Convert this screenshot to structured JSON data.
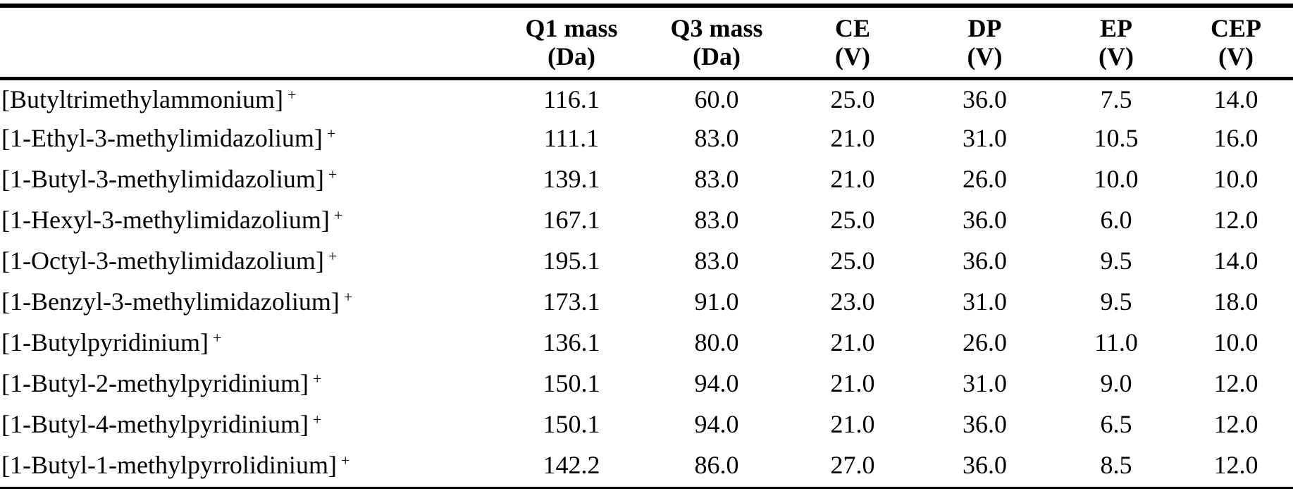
{
  "table": {
    "headers": [
      {
        "line1": "",
        "line2": ""
      },
      {
        "line1": "Q1 mass",
        "line2": "(Da)"
      },
      {
        "line1": "Q3 mass",
        "line2": "(Da)"
      },
      {
        "line1": "CE",
        "line2": "(V)"
      },
      {
        "line1": "DP",
        "line2": "(V)"
      },
      {
        "line1": "EP",
        "line2": "(V)"
      },
      {
        "line1": "CEP",
        "line2": "(V)"
      }
    ],
    "charge_symbol": "+",
    "rows": [
      {
        "name": "[Butyltrimethylammonium]",
        "q1": "116.1",
        "q3": "60.0",
        "ce": "25.0",
        "dp": "36.0",
        "ep": "7.5",
        "cep": "14.0"
      },
      {
        "name": "[1-Ethyl-3-methylimidazolium]",
        "q1": "111.1",
        "q3": "83.0",
        "ce": "21.0",
        "dp": "31.0",
        "ep": "10.5",
        "cep": "16.0"
      },
      {
        "name": "[1-Butyl-3-methylimidazolium]",
        "q1": "139.1",
        "q3": "83.0",
        "ce": "21.0",
        "dp": "26.0",
        "ep": "10.0",
        "cep": "10.0"
      },
      {
        "name": "[1-Hexyl-3-methylimidazolium]",
        "q1": "167.1",
        "q3": "83.0",
        "ce": "25.0",
        "dp": "36.0",
        "ep": "6.0",
        "cep": "12.0"
      },
      {
        "name": "[1-Octyl-3-methylimidazolium]",
        "q1": "195.1",
        "q3": "83.0",
        "ce": "25.0",
        "dp": "36.0",
        "ep": "9.5",
        "cep": "14.0"
      },
      {
        "name": "[1-Benzyl-3-methylimidazolium]",
        "q1": "173.1",
        "q3": "91.0",
        "ce": "23.0",
        "dp": "31.0",
        "ep": "9.5",
        "cep": "18.0"
      },
      {
        "name": "[1-Butylpyridinium]",
        "q1": "136.1",
        "q3": "80.0",
        "ce": "21.0",
        "dp": "26.0",
        "ep": "11.0",
        "cep": "10.0"
      },
      {
        "name": "[1-Butyl-2-methylpyridinium]",
        "q1": "150.1",
        "q3": "94.0",
        "ce": "21.0",
        "dp": "31.0",
        "ep": "9.0",
        "cep": "12.0"
      },
      {
        "name": "[1-Butyl-4-methylpyridinium]",
        "q1": "150.1",
        "q3": "94.0",
        "ce": "21.0",
        "dp": "36.0",
        "ep": "6.5",
        "cep": "12.0"
      },
      {
        "name": "[1-Butyl-1-methylpyrrolidinium]",
        "q1": "142.2",
        "q3": "86.0",
        "ce": "27.0",
        "dp": "36.0",
        "ep": "8.5",
        "cep": "12.0"
      }
    ]
  }
}
